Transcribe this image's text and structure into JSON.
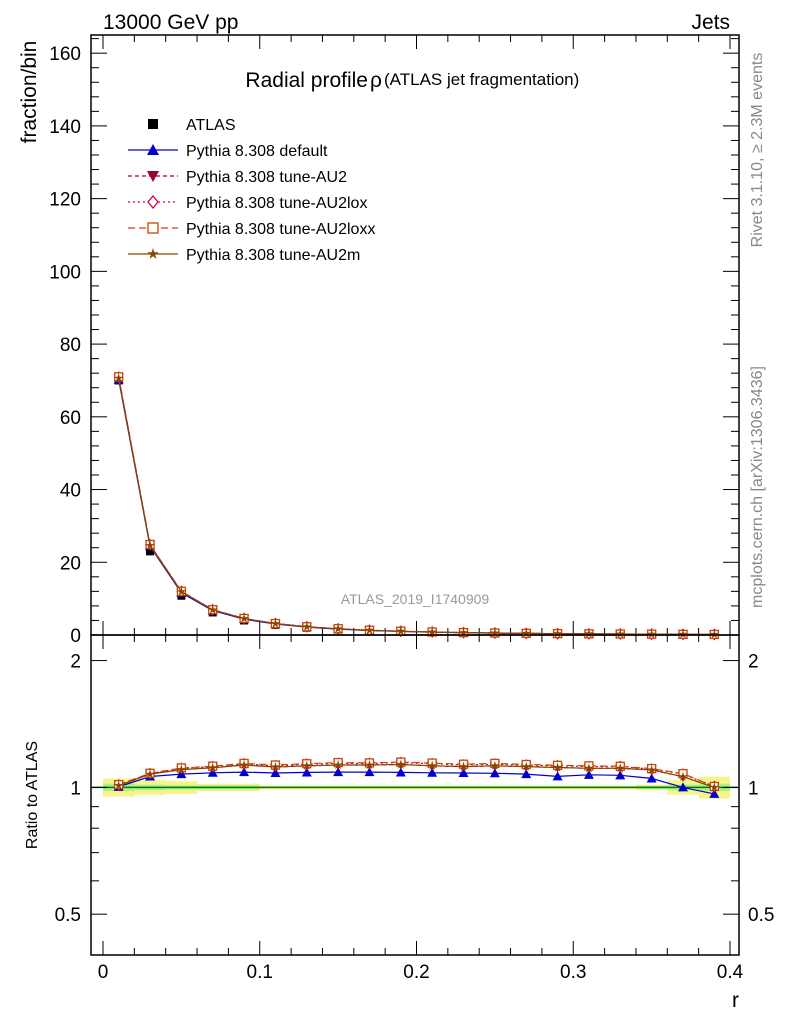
{
  "header": {
    "left": "13000 GeV pp",
    "right": "Jets"
  },
  "side_labels": {
    "rivet": "Rivet 3.1.10, ≥ 2.3M events",
    "mcplots": "mcplots.cern.ch [arXiv:1306.3436]"
  },
  "chart_data": [
    {
      "type": "line",
      "title": "Radial profile",
      "title_symbol": "ρ",
      "subtitle": "(ATLAS jet fragmentation)",
      "ylabel": "fraction/bin",
      "xlabel": "r",
      "watermark": "ATLAS_2019_I1740909",
      "xlim": [
        0,
        0.4
      ],
      "ylim": [
        0,
        165
      ],
      "grid": false,
      "legend_position": "top-left",
      "y_ticks": [
        "0",
        "20",
        "40",
        "60",
        "80",
        "100",
        "120",
        "140",
        "160"
      ],
      "x": [
        0.01,
        0.03,
        0.05,
        0.07,
        0.09,
        0.11,
        0.13,
        0.15,
        0.17,
        0.19,
        0.21,
        0.23,
        0.25,
        0.27,
        0.29,
        0.31,
        0.33,
        0.35,
        0.37,
        0.39
      ],
      "series": [
        {
          "name": "ATLAS",
          "color": "#000000",
          "marker": "square",
          "values": [
            70.0,
            23.0,
            10.8,
            6.2,
            4.0,
            2.8,
            2.0,
            1.5,
            1.15,
            0.9,
            0.72,
            0.58,
            0.48,
            0.4,
            0.33,
            0.28,
            0.24,
            0.2,
            0.17,
            0.15
          ]
        },
        {
          "name": "Pythia 8.308 default",
          "color": "#0000cc",
          "marker": "triangle-up",
          "dash": "",
          "values": [
            70.2,
            24.4,
            11.6,
            6.7,
            4.35,
            3.03,
            2.17,
            1.63,
            1.25,
            0.98,
            0.78,
            0.63,
            0.52,
            0.43,
            0.35,
            0.3,
            0.26,
            0.21,
            0.17,
            0.145
          ]
        },
        {
          "name": "Pythia 8.308 tune-AU2",
          "color": "#990033",
          "marker": "triangle-down",
          "dash": "4,3",
          "values": [
            70.7,
            24.7,
            11.9,
            6.9,
            4.52,
            3.13,
            2.25,
            1.7,
            1.3,
            1.02,
            0.81,
            0.65,
            0.54,
            0.45,
            0.37,
            0.31,
            0.27,
            0.22,
            0.18,
            0.15
          ]
        },
        {
          "name": "Pythia 8.308 tune-AU2lox",
          "color": "#cc0044",
          "marker": "diamond",
          "dash": "2,3",
          "values": [
            70.9,
            24.8,
            12.0,
            6.95,
            4.55,
            3.15,
            2.27,
            1.71,
            1.31,
            1.03,
            0.82,
            0.66,
            0.54,
            0.45,
            0.37,
            0.31,
            0.27,
            0.22,
            0.18,
            0.15
          ]
        },
        {
          "name": "Pythia 8.308 tune-AU2loxx",
          "color": "#cc4400",
          "marker": "square-open",
          "dash": "7,4",
          "values": [
            71.0,
            24.9,
            12.0,
            6.96,
            4.56,
            3.16,
            2.27,
            1.72,
            1.32,
            1.04,
            0.83,
            0.66,
            0.55,
            0.45,
            0.37,
            0.31,
            0.27,
            0.22,
            0.18,
            0.15
          ]
        },
        {
          "name": "Pythia 8.308 tune-AU2m",
          "color": "#884400",
          "marker": "star",
          "dash": "",
          "values": [
            70.6,
            24.6,
            11.9,
            6.9,
            4.51,
            3.13,
            2.25,
            1.7,
            1.3,
            1.02,
            0.81,
            0.65,
            0.54,
            0.45,
            0.37,
            0.31,
            0.27,
            0.22,
            0.18,
            0.15
          ]
        }
      ]
    },
    {
      "type": "line",
      "ylabel": "Ratio to ATLAS",
      "xlabel": "r",
      "xlim": [
        0,
        0.4
      ],
      "ylim": [
        0.4,
        2.3
      ],
      "y_scale": "log",
      "x_ticks": [
        "0",
        "0.1",
        "0.2",
        "0.3",
        "0.4"
      ],
      "y_ticks": [
        "0.5",
        "1",
        "2"
      ],
      "reference_line": 1.0,
      "uncertainty_band": {
        "x": [
          0.01,
          0.03,
          0.05,
          0.07,
          0.09,
          0.11,
          0.13,
          0.15,
          0.17,
          0.19,
          0.21,
          0.23,
          0.25,
          0.27,
          0.29,
          0.31,
          0.33,
          0.35,
          0.37,
          0.39
        ],
        "stat_color": "#aef08c",
        "total_color": "#f5f58a",
        "stat": [
          0.02,
          0.015,
          0.012,
          0.012,
          0.012,
          0.005,
          0.005,
          0.005,
          0.005,
          0.005,
          0.005,
          0.005,
          0.005,
          0.005,
          0.005,
          0.005,
          0.005,
          0.01,
          0.015,
          0.02
        ],
        "total": [
          0.05,
          0.04,
          0.035,
          0.02,
          0.02,
          0.01,
          0.01,
          0.01,
          0.01,
          0.01,
          0.01,
          0.01,
          0.01,
          0.01,
          0.01,
          0.01,
          0.01,
          0.015,
          0.04,
          0.06
        ]
      },
      "x": [
        0.01,
        0.03,
        0.05,
        0.07,
        0.09,
        0.11,
        0.13,
        0.15,
        0.17,
        0.19,
        0.21,
        0.23,
        0.25,
        0.27,
        0.29,
        0.31,
        0.33,
        0.35,
        0.37,
        0.39
      ],
      "series": [
        {
          "name": "Pythia 8.308 default",
          "color": "#0000cc",
          "marker": "triangle-up",
          "dash": "",
          "values": [
            1.003,
            1.061,
            1.075,
            1.083,
            1.087,
            1.082,
            1.085,
            1.087,
            1.087,
            1.085,
            1.083,
            1.082,
            1.08,
            1.075,
            1.062,
            1.071,
            1.068,
            1.05,
            1.0,
            0.965
          ]
        },
        {
          "name": "Pythia 8.308 tune-AU2",
          "color": "#990033",
          "marker": "triangle-down",
          "dash": "4,3",
          "values": [
            1.01,
            1.075,
            1.102,
            1.113,
            1.13,
            1.118,
            1.125,
            1.13,
            1.13,
            1.133,
            1.125,
            1.12,
            1.125,
            1.12,
            1.115,
            1.11,
            1.11,
            1.1,
            1.06,
            1.0
          ]
        },
        {
          "name": "Pythia 8.308 tune-AU2lox",
          "color": "#cc0044",
          "marker": "diamond",
          "dash": "2,3",
          "values": [
            1.013,
            1.078,
            1.11,
            1.12,
            1.137,
            1.125,
            1.135,
            1.14,
            1.14,
            1.145,
            1.138,
            1.13,
            1.135,
            1.13,
            1.125,
            1.12,
            1.12,
            1.105,
            1.075,
            1.005
          ]
        },
        {
          "name": "Pythia 8.308 tune-AU2loxx",
          "color": "#cc4400",
          "marker": "square-open",
          "dash": "7,4",
          "values": [
            1.015,
            1.08,
            1.112,
            1.123,
            1.14,
            1.13,
            1.138,
            1.145,
            1.143,
            1.148,
            1.142,
            1.135,
            1.14,
            1.133,
            1.128,
            1.125,
            1.122,
            1.108,
            1.078,
            1.005
          ]
        },
        {
          "name": "Pythia 8.308 tune-AU2m",
          "color": "#884400",
          "marker": "star",
          "dash": "",
          "values": [
            1.01,
            1.075,
            1.102,
            1.113,
            1.13,
            1.118,
            1.125,
            1.13,
            1.13,
            1.133,
            1.125,
            1.12,
            1.125,
            1.12,
            1.115,
            1.11,
            1.11,
            1.1,
            1.06,
            1.0
          ]
        }
      ]
    }
  ]
}
